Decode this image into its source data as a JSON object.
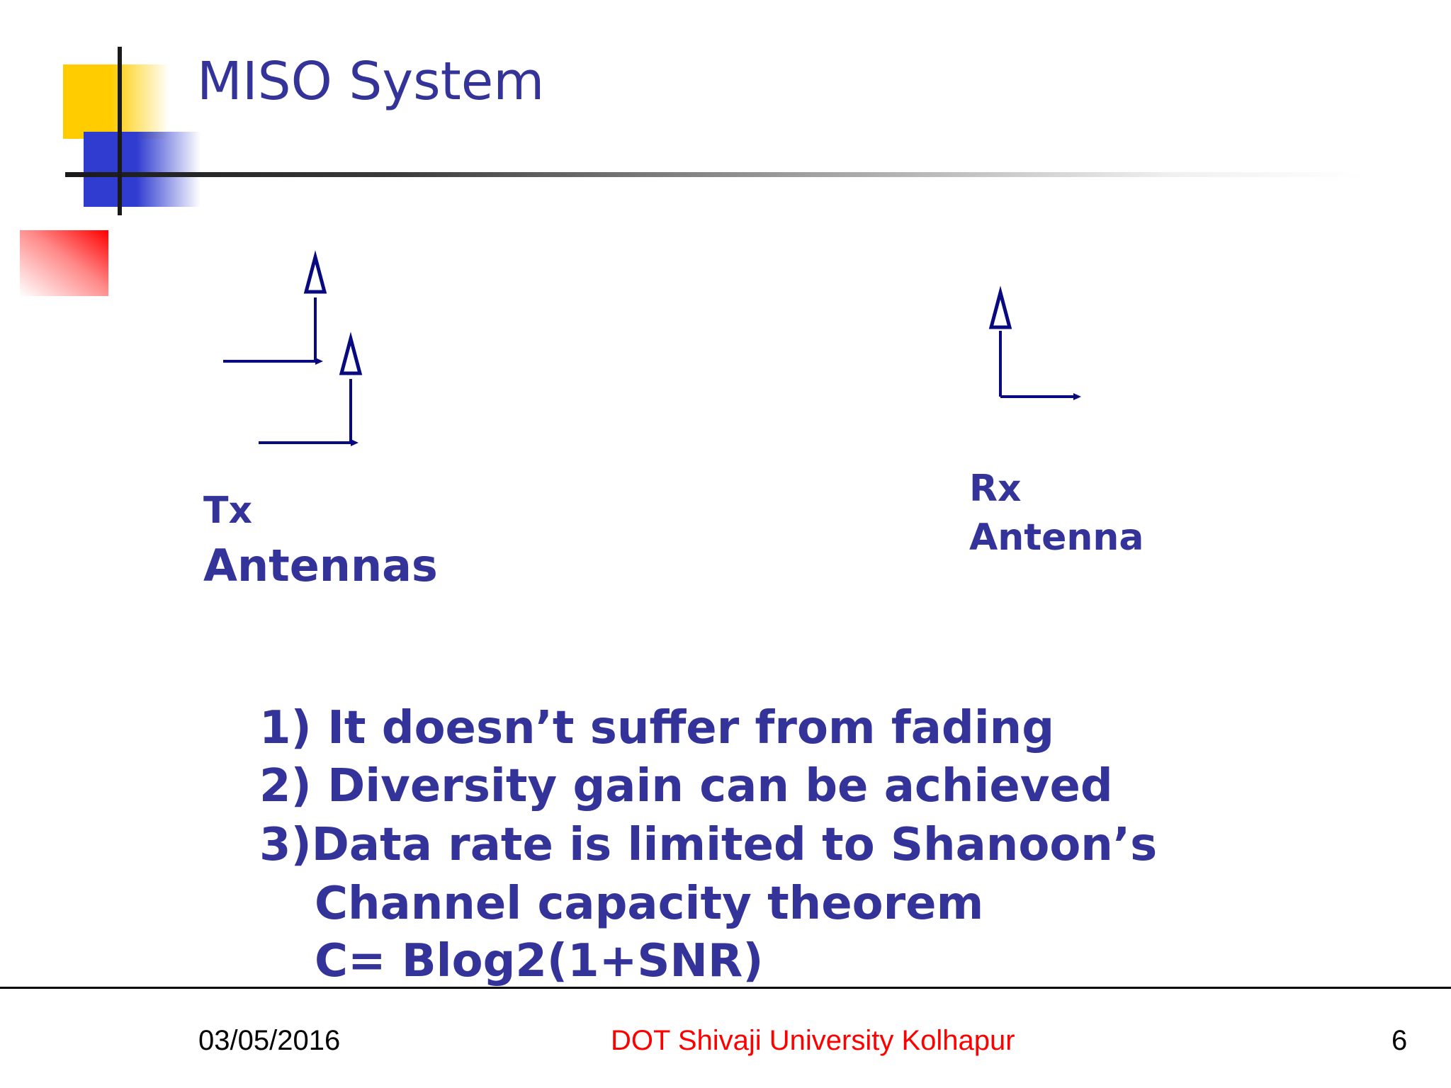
{
  "slide": {
    "title": "MISO System",
    "tx_label": {
      "line1": "Tx",
      "line2": "Antennas"
    },
    "rx_label": {
      "line1": "Rx",
      "line2": "Antenna"
    },
    "points": [
      "1) It  doesn’t suffer from fading",
      "2) Diversity gain can be achieved",
      "3)Data rate is limited to Shanoon’s",
      "Channel capacity theorem",
      "C= Blog2(1+SNR)"
    ]
  },
  "footer": {
    "date": "03/05/2016",
    "center": "DOT Shivaji University Kolhapur",
    "page_number": "6"
  },
  "colors": {
    "title": "#333399",
    "body_text": "#333399",
    "antenna_stroke": "#0a0a80",
    "footer_center": "#ff0000",
    "accent_yellow": "#ffcc00",
    "accent_blue": "#2f3ccf",
    "accent_red": "#ff0000"
  },
  "icons": [
    "tx-antenna-icon",
    "tx-antenna-icon",
    "rx-antenna-icon"
  ]
}
